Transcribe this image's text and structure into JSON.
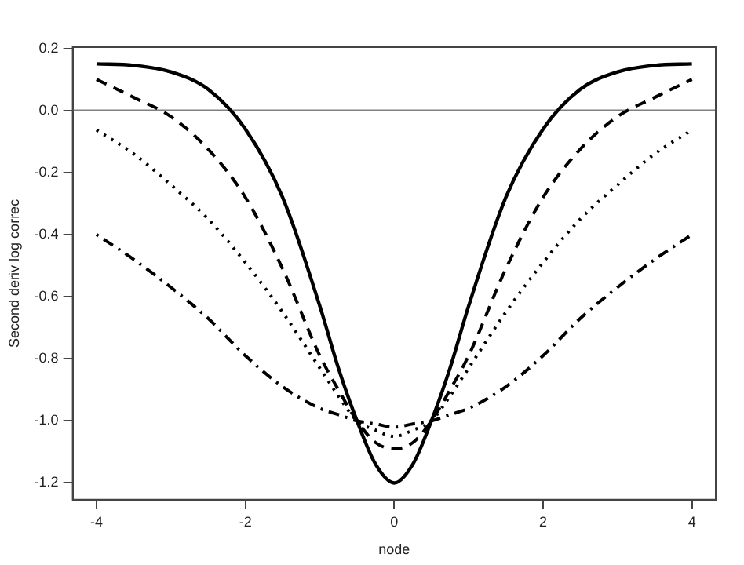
{
  "chart_data": {
    "type": "line",
    "xlabel": "node",
    "ylabel": "Second deriv log correc",
    "x": [
      -4,
      -3.5,
      -3,
      -2.5,
      -2,
      -1.5,
      -1,
      -0.75,
      -0.5,
      -0.25,
      0,
      0.25,
      0.5,
      0.75,
      1,
      1.5,
      2,
      2.5,
      3,
      3.5,
      4
    ],
    "series": [
      {
        "color": "#000000",
        "line_style": "solid",
        "values": [
          0.15,
          0.145,
          0.124,
          0.068,
          -0.06,
          -0.28,
          -0.63,
          -0.83,
          -1.0,
          -1.14,
          -1.2,
          -1.14,
          -1.0,
          -0.83,
          -0.63,
          -0.28,
          -0.06,
          0.068,
          0.124,
          0.145,
          0.15
        ]
      },
      {
        "color": "#000000",
        "line_style": "dashed",
        "values": [
          0.1,
          0.042,
          -0.02,
          -0.125,
          -0.28,
          -0.51,
          -0.79,
          -0.9,
          -1.0,
          -1.07,
          -1.09,
          -1.07,
          -1.0,
          -0.9,
          -0.79,
          -0.51,
          -0.28,
          -0.125,
          -0.02,
          0.042,
          0.1
        ]
      },
      {
        "color": "#000000",
        "line_style": "dotted",
        "values": [
          -0.063,
          -0.14,
          -0.24,
          -0.35,
          -0.49,
          -0.65,
          -0.83,
          -0.92,
          -1.0,
          -1.03,
          -1.05,
          -1.03,
          -1.0,
          -0.92,
          -0.83,
          -0.65,
          -0.49,
          -0.35,
          -0.24,
          -0.14,
          -0.063
        ]
      },
      {
        "color": "#000000",
        "line_style": "dashdot",
        "values": [
          -0.4,
          -0.48,
          -0.57,
          -0.67,
          -0.79,
          -0.89,
          -0.96,
          -0.98,
          -1.0,
          -1.01,
          -1.02,
          -1.01,
          -1.0,
          -0.98,
          -0.96,
          -0.89,
          -0.79,
          -0.67,
          -0.57,
          -0.48,
          -0.4
        ]
      }
    ],
    "xlim": [
      -4.32,
      4.32
    ],
    "xticks": [
      -4,
      -2,
      0,
      2,
      4
    ],
    "ylim": [
      -1.254,
      0.204
    ],
    "yticks": [
      -1.2,
      {
        "value": -1,
        "label": "-1.0"
      },
      -0.8,
      -0.6,
      -0.4,
      -0.2,
      {
        "value": 0,
        "label": "0.0"
      },
      0.2
    ],
    "ref_lines": [
      {
        "axis": "y",
        "value": 0,
        "color": "#808080"
      }
    ],
    "grid": false,
    "legend": false,
    "marker": "none"
  }
}
